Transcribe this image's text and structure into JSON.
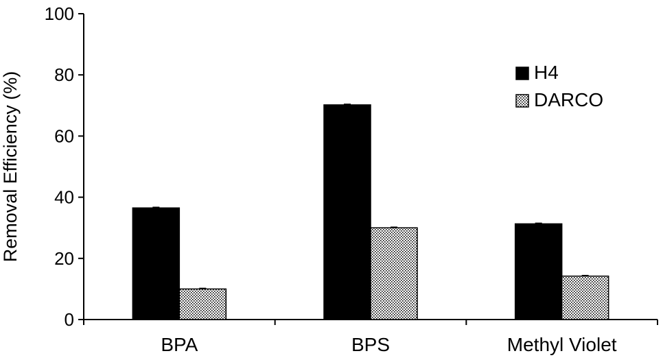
{
  "chart_data": {
    "type": "bar",
    "categories": [
      "BPA",
      "BPS",
      "Methyl Violet"
    ],
    "series": [
      {
        "name": "H4",
        "values": [
          36.5,
          70.2,
          31.3
        ],
        "color": "#000000",
        "pattern": "solid"
      },
      {
        "name": "DARCO",
        "values": [
          10.0,
          30.0,
          14.2
        ],
        "color": "#ffffff",
        "pattern": "dotted"
      }
    ],
    "ylabel": "Removal Efficiency (%)",
    "xlabel": "",
    "ylim": [
      0,
      100
    ],
    "yticks": [
      0,
      20,
      40,
      60,
      80,
      100
    ],
    "legend_position": "top-right",
    "grid": false
  }
}
